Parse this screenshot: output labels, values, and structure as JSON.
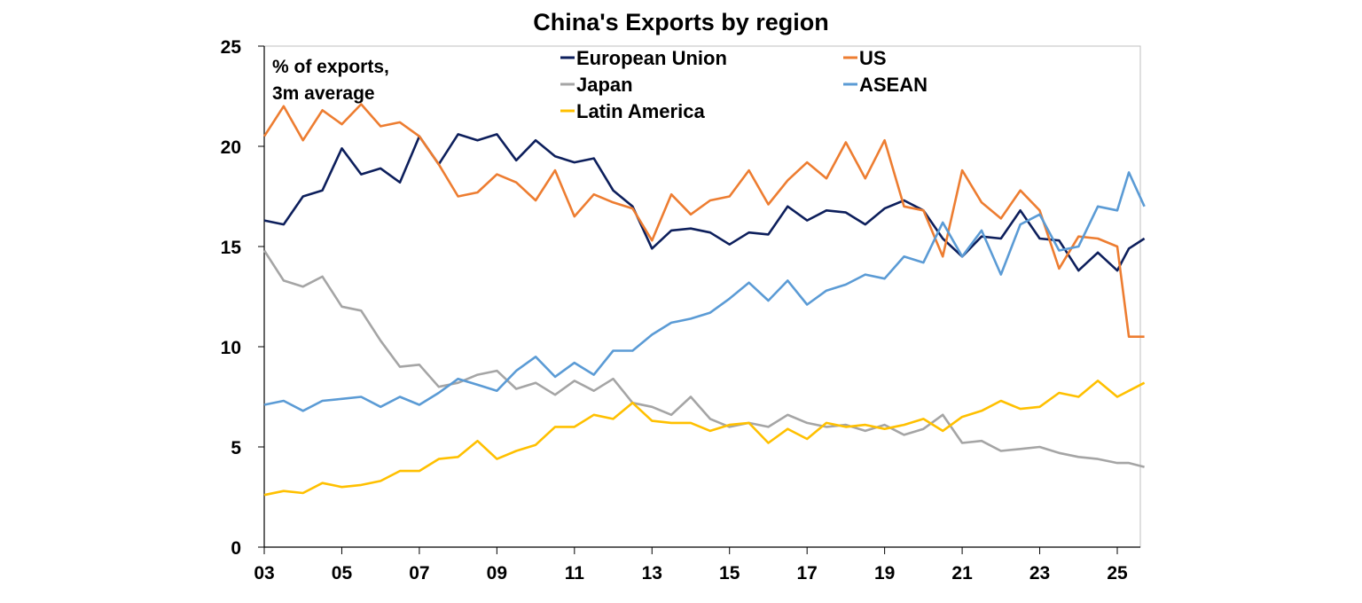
{
  "chart_data": {
    "type": "line",
    "title": "China's Exports by region",
    "note_lines": [
      "% of exports,",
      "3m average"
    ],
    "xlabel": "",
    "ylabel": "",
    "ylim": [
      0,
      25
    ],
    "xlim": [
      2003,
      2025.7
    ],
    "y_ticks": [
      0,
      5,
      10,
      15,
      20,
      25
    ],
    "x_ticks": [
      2003,
      2005,
      2007,
      2009,
      2011,
      2013,
      2015,
      2017,
      2019,
      2021,
      2023,
      2025
    ],
    "x_tick_labels": [
      "03",
      "05",
      "07",
      "09",
      "11",
      "13",
      "15",
      "17",
      "19",
      "21",
      "23",
      "25"
    ],
    "grid": false,
    "legend_position": "top",
    "x": [
      2003.0,
      2003.5,
      2004.0,
      2004.5,
      2005.0,
      2005.5,
      2006.0,
      2006.5,
      2007.0,
      2007.5,
      2008.0,
      2008.5,
      2009.0,
      2009.5,
      2010.0,
      2010.5,
      2011.0,
      2011.5,
      2012.0,
      2012.5,
      2013.0,
      2013.5,
      2014.0,
      2014.5,
      2015.0,
      2015.5,
      2016.0,
      2016.5,
      2017.0,
      2017.5,
      2018.0,
      2018.5,
      2019.0,
      2019.5,
      2020.0,
      2020.5,
      2021.0,
      2021.5,
      2022.0,
      2022.5,
      2023.0,
      2023.5,
      2024.0,
      2024.5,
      2025.0,
      2025.3,
      2025.7
    ],
    "series": [
      {
        "name": "European Union",
        "color": "#0d1f5c",
        "values": [
          16.3,
          16.1,
          17.5,
          17.8,
          19.9,
          18.6,
          18.9,
          18.2,
          20.5,
          19.1,
          20.6,
          20.3,
          20.6,
          19.3,
          20.3,
          19.5,
          19.2,
          19.4,
          17.8,
          17.0,
          14.9,
          15.8,
          15.9,
          15.7,
          15.1,
          15.7,
          15.6,
          17.0,
          16.3,
          16.8,
          16.7,
          16.1,
          16.9,
          17.3,
          16.8,
          15.4,
          14.5,
          15.5,
          15.4,
          16.8,
          15.4,
          15.3,
          13.8,
          14.7,
          13.8,
          14.9,
          15.4
        ]
      },
      {
        "name": "US",
        "color": "#ed7d31",
        "values": [
          20.5,
          22.0,
          20.3,
          21.8,
          21.1,
          22.1,
          21.0,
          21.2,
          20.5,
          19.1,
          17.5,
          17.7,
          18.6,
          18.2,
          17.3,
          18.8,
          16.5,
          17.6,
          17.2,
          16.9,
          15.3,
          17.6,
          16.6,
          17.3,
          17.5,
          18.8,
          17.1,
          18.3,
          19.2,
          18.4,
          20.2,
          18.4,
          20.3,
          17.0,
          16.8,
          14.5,
          18.8,
          17.2,
          16.4,
          17.8,
          16.8,
          13.9,
          15.5,
          15.4,
          15.0,
          10.5,
          10.5
        ]
      },
      {
        "name": "Japan",
        "color": "#a5a5a5",
        "values": [
          14.8,
          13.3,
          13.0,
          13.5,
          12.0,
          11.8,
          10.3,
          9.0,
          9.1,
          8.0,
          8.2,
          8.6,
          8.8,
          7.9,
          8.2,
          7.6,
          8.3,
          7.8,
          8.4,
          7.2,
          7.0,
          6.6,
          7.5,
          6.4,
          6.0,
          6.2,
          6.0,
          6.6,
          6.2,
          6.0,
          6.1,
          5.8,
          6.1,
          5.6,
          5.9,
          6.6,
          5.2,
          5.3,
          4.8,
          4.9,
          5.0,
          4.7,
          4.5,
          4.4,
          4.2,
          4.2,
          4.0
        ]
      },
      {
        "name": "ASEAN",
        "color": "#5b9bd5",
        "values": [
          7.1,
          7.3,
          6.8,
          7.3,
          7.4,
          7.5,
          7.0,
          7.5,
          7.1,
          7.7,
          8.4,
          8.1,
          7.8,
          8.8,
          9.5,
          8.5,
          9.2,
          8.6,
          9.8,
          9.8,
          10.6,
          11.2,
          11.4,
          11.7,
          12.4,
          13.2,
          12.3,
          13.3,
          12.1,
          12.8,
          13.1,
          13.6,
          13.4,
          14.5,
          14.2,
          16.2,
          14.5,
          15.8,
          13.6,
          16.1,
          16.6,
          14.8,
          15.0,
          17.0,
          16.8,
          18.7,
          17.0
        ]
      },
      {
        "name": "Latin America",
        "color": "#ffc000",
        "values": [
          2.6,
          2.8,
          2.7,
          3.2,
          3.0,
          3.1,
          3.3,
          3.8,
          3.8,
          4.4,
          4.5,
          5.3,
          4.4,
          4.8,
          5.1,
          6.0,
          6.0,
          6.6,
          6.4,
          7.2,
          6.3,
          6.2,
          6.2,
          5.8,
          6.1,
          6.2,
          5.2,
          5.9,
          5.4,
          6.2,
          6.0,
          6.1,
          5.9,
          6.1,
          6.4,
          5.8,
          6.5,
          6.8,
          7.3,
          6.9,
          7.0,
          7.7,
          7.5,
          8.3,
          7.5,
          7.8,
          8.2
        ]
      }
    ]
  }
}
